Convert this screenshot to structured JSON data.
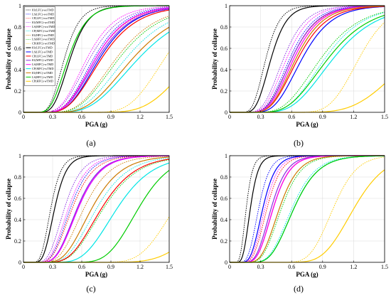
{
  "figure": {
    "panels": [
      "(a)",
      "(b)",
      "(c)",
      "(d)"
    ]
  },
  "colors": {
    "IO_LFC": "#000000",
    "LS_LFC": "#0000ff",
    "CP_LFC": "#ff0000",
    "IO_MFC": "#8a2be2",
    "LS_MFC": "#ff00ff",
    "CP_MFC": "#00e5e5",
    "IO_HFC": "#cc7a00",
    "LS_HFC": "#00cc00",
    "CP_HFC": "#ffcc00"
  },
  "legend": [
    {
      "label": "IO(LFC)-woTMD",
      "color": "#000000",
      "dash": true
    },
    {
      "label": "LS(LFC)-woTMD",
      "color": "#0000ff",
      "dash": true
    },
    {
      "label": "CP(LFC)-woTMD",
      "color": "#ff0000",
      "dash": true
    },
    {
      "label": "IO(MFC)-woTMD",
      "color": "#8a2be2",
      "dash": true
    },
    {
      "label": "LS(MFC)-woTMD",
      "color": "#ff00ff",
      "dash": true
    },
    {
      "label": "CP(MFC)-woTMD",
      "color": "#00e5e5",
      "dash": true
    },
    {
      "label": "IO(HFC)-woTMD",
      "color": "#cc7a00",
      "dash": true
    },
    {
      "label": "LS(HFC)-woTMD",
      "color": "#00cc00",
      "dash": true
    },
    {
      "label": "CP(HFC)-woTMD",
      "color": "#ffcc00",
      "dash": true
    },
    {
      "label": "IO(LFC)-wTMD",
      "color": "#000000",
      "dash": false
    },
    {
      "label": "LS(LFC)-wTMD",
      "color": "#0000ff",
      "dash": false
    },
    {
      "label": "CP(LFC)-wTMD",
      "color": "#ff0000",
      "dash": false
    },
    {
      "label": "IO(MFC)-wTMD",
      "color": "#8a2be2",
      "dash": false
    },
    {
      "label": "LS(MFC)-wTMD",
      "color": "#ff00ff",
      "dash": false
    },
    {
      "label": "CP(MFC)-wTMD",
      "color": "#00e5e5",
      "dash": false
    },
    {
      "label": "IO(HFC)-wTMD",
      "color": "#cc7a00",
      "dash": false
    },
    {
      "label": "LS(HFC)-wTMD",
      "color": "#00cc00",
      "dash": false
    },
    {
      "label": "CP(HFC)-wTMD",
      "color": "#ffcc00",
      "dash": false
    }
  ],
  "chart_data": [
    {
      "type": "line",
      "panel": "(a)",
      "xlabel": "PGA (g)",
      "ylabel": "Probability of collapse",
      "xlim": [
        0,
        1.5
      ],
      "ylim": [
        0,
        1
      ],
      "xticks": [
        "0",
        "0.3",
        "0.6",
        "0.9",
        "1.2",
        "1.5"
      ],
      "yticks": [
        "0",
        "0.2",
        "0.4",
        "0.6",
        "0.8",
        "1"
      ],
      "grid": true,
      "legend_position": "top-left",
      "series": [
        {
          "name": "IO(LFC)-woTMD",
          "median": 0.42,
          "beta": 0.3
        },
        {
          "name": "LS(LFC)-woTMD",
          "median": 0.72,
          "beta": 0.35
        },
        {
          "name": "CP(LFC)-woTMD",
          "median": 0.74,
          "beta": 0.36
        },
        {
          "name": "IO(MFC)-woTMD",
          "median": 0.68,
          "beta": 0.36
        },
        {
          "name": "LS(MFC)-woTMD",
          "median": 0.65,
          "beta": 0.35
        },
        {
          "name": "CP(MFC)-woTMD",
          "median": 1.05,
          "beta": 0.35
        },
        {
          "name": "IO(HFC)-woTMD",
          "median": 0.95,
          "beta": 0.35
        },
        {
          "name": "LS(HFC)-woTMD",
          "median": 0.98,
          "beta": 0.35
        },
        {
          "name": "CP(HFC)-woTMD",
          "median": 1.45,
          "beta": 0.2
        },
        {
          "name": "IO(LFC)-wTMD",
          "median": 0.48,
          "beta": 0.3
        },
        {
          "name": "LS(LFC)-wTMD",
          "median": 0.78,
          "beta": 0.35
        },
        {
          "name": "CP(LFC)-wTMD",
          "median": 0.8,
          "beta": 0.36
        },
        {
          "name": "IO(MFC)-wTMD",
          "median": 0.76,
          "beta": 0.36
        },
        {
          "name": "LS(MFC)-wTMD",
          "median": 0.74,
          "beta": 0.35
        },
        {
          "name": "CP(MFC)-wTMD",
          "median": 1.18,
          "beta": 0.35
        },
        {
          "name": "IO(HFC)-wTMD",
          "median": 1.12,
          "beta": 0.35
        },
        {
          "name": "LS(HFC)-wTMD",
          "median": 0.46,
          "beta": 0.33
        },
        {
          "name": "CP(HFC)-wTMD",
          "median": 1.75,
          "beta": 0.22
        }
      ]
    },
    {
      "type": "line",
      "panel": "(b)",
      "xlabel": "PGA (g)",
      "ylabel": "Probability of collapse",
      "xlim": [
        0,
        1.5
      ],
      "ylim": [
        0,
        1
      ],
      "xticks": [
        "0",
        "0.3",
        "0.6",
        "0.9",
        "1.2",
        "1.5"
      ],
      "yticks": [
        "0",
        "0.2",
        "0.4",
        "0.6",
        "0.8",
        "1"
      ],
      "grid": true,
      "series": [
        {
          "name": "IO(LFC)-woTMD",
          "median": 0.35,
          "beta": 0.3
        },
        {
          "name": "LS(LFC)-woTMD",
          "median": 0.58,
          "beta": 0.32
        },
        {
          "name": "CP(LFC)-woTMD",
          "median": 0.6,
          "beta": 0.33
        },
        {
          "name": "IO(MFC)-woTMD",
          "median": 0.52,
          "beta": 0.32
        },
        {
          "name": "LS(MFC)-woTMD",
          "median": 0.55,
          "beta": 0.32
        },
        {
          "name": "CP(MFC)-woTMD",
          "median": 0.92,
          "beta": 0.32
        },
        {
          "name": "IO(HFC)-woTMD",
          "median": 0.62,
          "beta": 0.32
        },
        {
          "name": "LS(HFC)-woTMD",
          "median": 0.88,
          "beta": 0.34
        },
        {
          "name": "CP(HFC)-woTMD",
          "median": 1.25,
          "beta": 0.18
        },
        {
          "name": "IO(LFC)-wTMD",
          "median": 0.4,
          "beta": 0.3
        },
        {
          "name": "LS(LFC)-wTMD",
          "median": 0.7,
          "beta": 0.32
        },
        {
          "name": "CP(LFC)-wTMD",
          "median": 0.66,
          "beta": 0.33
        },
        {
          "name": "IO(MFC)-wTMD",
          "median": 0.6,
          "beta": 0.32
        },
        {
          "name": "LS(MFC)-wTMD",
          "median": 0.62,
          "beta": 0.32
        },
        {
          "name": "CP(MFC)-wTMD",
          "median": 1.0,
          "beta": 0.33
        },
        {
          "name": "IO(HFC)-wTMD",
          "median": 0.64,
          "beta": 0.32
        },
        {
          "name": "LS(HFC)-wTMD",
          "median": 0.95,
          "beta": 0.34
        },
        {
          "name": "CP(HFC)-wTMD",
          "median": 1.75,
          "beta": 0.25
        }
      ]
    },
    {
      "type": "line",
      "panel": "(c)",
      "xlabel": "PGA (g)",
      "ylabel": "Probability of collapse",
      "xlim": [
        0,
        1.5
      ],
      "ylim": [
        0,
        1
      ],
      "xticks": [
        "0",
        "0.3",
        "0.6",
        "0.9",
        "1.2",
        "1.5"
      ],
      "yticks": [
        "0",
        "0.2",
        "0.4",
        "0.6",
        "0.8",
        "1"
      ],
      "grid": true,
      "series": [
        {
          "name": "IO(LFC)-woTMD",
          "median": 0.28,
          "beta": 0.3
        },
        {
          "name": "LS(LFC)-woTMD",
          "median": 0.48,
          "beta": 0.33
        },
        {
          "name": "CP(LFC)-woTMD",
          "median": 0.5,
          "beta": 0.34
        },
        {
          "name": "IO(MFC)-woTMD",
          "median": 0.42,
          "beta": 0.33
        },
        {
          "name": "LS(MFC)-woTMD",
          "median": 0.46,
          "beta": 0.33
        },
        {
          "name": "CP(MFC)-woTMD",
          "median": 0.75,
          "beta": 0.34
        },
        {
          "name": "IO(HFC)-woTMD",
          "median": 0.62,
          "beta": 0.34
        },
        {
          "name": "LS(HFC)-woTMD",
          "median": 0.82,
          "beta": 0.34
        },
        {
          "name": "CP(HFC)-woTMD",
          "median": 1.55,
          "beta": 0.18
        },
        {
          "name": "IO(LFC)-wTMD",
          "median": 0.32,
          "beta": 0.3
        },
        {
          "name": "LS(LFC)-wTMD",
          "median": 0.56,
          "beta": 0.33
        },
        {
          "name": "CP(LFC)-wTMD",
          "median": 0.8,
          "beta": 0.34
        },
        {
          "name": "IO(MFC)-wTMD",
          "median": 0.55,
          "beta": 0.33
        },
        {
          "name": "LS(MFC)-wTMD",
          "median": 0.56,
          "beta": 0.33
        },
        {
          "name": "CP(MFC)-wTMD",
          "median": 0.96,
          "beta": 0.3
        },
        {
          "name": "IO(HFC)-wTMD",
          "median": 0.7,
          "beta": 0.34
        },
        {
          "name": "LS(HFC)-wTMD",
          "median": 1.18,
          "beta": 0.22
        },
        {
          "name": "CP(HFC)-wTMD",
          "median": 2.0,
          "beta": 0.22
        }
      ]
    },
    {
      "type": "line",
      "panel": "(d)",
      "xlabel": "PGA (g)",
      "ylabel": "Probability of collapse",
      "xlim": [
        0,
        1.5
      ],
      "ylim": [
        0,
        1
      ],
      "xticks": [
        "0",
        "0.3",
        "0.6",
        "0.9",
        "1.2",
        "1.5"
      ],
      "yticks": [
        "0",
        "0.2",
        "0.4",
        "0.6",
        "0.8",
        "1"
      ],
      "grid": true,
      "series": [
        {
          "name": "IO(LFC)-woTMD",
          "median": 0.16,
          "beta": 0.3
        },
        {
          "name": "LS(LFC)-woTMD",
          "median": 0.28,
          "beta": 0.3
        },
        {
          "name": "CP(LFC)-woTMD",
          "median": 0.36,
          "beta": 0.3
        },
        {
          "name": "IO(MFC)-woTMD",
          "median": 0.32,
          "beta": 0.3
        },
        {
          "name": "LS(MFC)-woTMD",
          "median": 0.34,
          "beta": 0.3
        },
        {
          "name": "CP(MFC)-woTMD",
          "median": 0.6,
          "beta": 0.3
        },
        {
          "name": "IO(HFC)-woTMD",
          "median": 0.42,
          "beta": 0.3
        },
        {
          "name": "LS(HFC)-woTMD",
          "median": 0.5,
          "beta": 0.3
        },
        {
          "name": "CP(HFC)-woTMD",
          "median": 1.0,
          "beta": 0.18
        },
        {
          "name": "IO(LFC)-wTMD",
          "median": 0.2,
          "beta": 0.3
        },
        {
          "name": "LS(LFC)-wTMD",
          "median": 0.32,
          "beta": 0.3
        },
        {
          "name": "CP(LFC)-wTMD",
          "median": 0.42,
          "beta": 0.3
        },
        {
          "name": "IO(MFC)-wTMD",
          "median": 0.4,
          "beta": 0.3
        },
        {
          "name": "LS(MFC)-wTMD",
          "median": 0.42,
          "beta": 0.3
        },
        {
          "name": "CP(MFC)-wTMD",
          "median": 0.62,
          "beta": 0.3
        },
        {
          "name": "IO(HFC)-wTMD",
          "median": 0.48,
          "beta": 0.3
        },
        {
          "name": "LS(HFC)-wTMD",
          "median": 0.62,
          "beta": 0.3
        },
        {
          "name": "CP(HFC)-wTMD",
          "median": 1.2,
          "beta": 0.2
        }
      ]
    }
  ]
}
